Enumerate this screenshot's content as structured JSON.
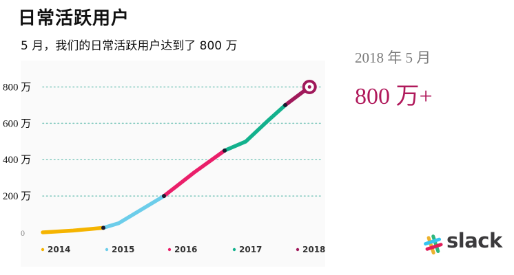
{
  "title": "日常活跃用户",
  "subtitle": "5 月，我们的日常活跃用户达到了 800 万",
  "highlight": {
    "date": "2018 年 5 月",
    "value": "800 万+",
    "color": "#b0195b"
  },
  "brand": {
    "name": "slack",
    "colors": [
      "#36c5f0",
      "#2eb67d",
      "#ecb22e",
      "#e01e5a"
    ]
  },
  "chart_data": {
    "type": "line",
    "title": "",
    "xlabel": "",
    "ylabel": "",
    "xlim": [
      2014,
      2018.5
    ],
    "ylim": [
      0,
      900
    ],
    "y_ticks": [
      {
        "value": 0,
        "label": "0"
      },
      {
        "value": 200,
        "label": "200 万"
      },
      {
        "value": 400,
        "label": "400 万"
      },
      {
        "value": 600,
        "label": "600 万"
      },
      {
        "value": 800,
        "label": "800 万"
      }
    ],
    "legend": [
      {
        "label": "2014",
        "color": "#f5b400"
      },
      {
        "label": "2015",
        "color": "#6ccdea"
      },
      {
        "label": "2016",
        "color": "#ea1f6a"
      },
      {
        "label": "2017",
        "color": "#13b18d"
      },
      {
        "label": "2018",
        "color": "#a0195b"
      }
    ],
    "legend_position": "bottom",
    "grid": "dotted horizontal",
    "segments": [
      {
        "year": "2014",
        "color": "#f5b400",
        "points": [
          [
            2014.0,
            0
          ],
          [
            2014.5,
            10
          ],
          [
            2015.0,
            25
          ]
        ]
      },
      {
        "year": "2015",
        "color": "#6ccdea",
        "points": [
          [
            2015.0,
            25
          ],
          [
            2015.25,
            50
          ],
          [
            2016.0,
            200
          ]
        ]
      },
      {
        "year": "2016",
        "color": "#ea1f6a",
        "points": [
          [
            2016.0,
            200
          ],
          [
            2016.5,
            330
          ],
          [
            2017.0,
            450
          ]
        ]
      },
      {
        "year": "2017",
        "color": "#13b18d",
        "points": [
          [
            2017.0,
            450
          ],
          [
            2017.35,
            500
          ],
          [
            2017.7,
            610
          ],
          [
            2018.0,
            700
          ]
        ]
      },
      {
        "year": "2018",
        "color": "#a0195b",
        "points": [
          [
            2018.0,
            700
          ],
          [
            2018.4,
            800
          ]
        ]
      }
    ]
  }
}
